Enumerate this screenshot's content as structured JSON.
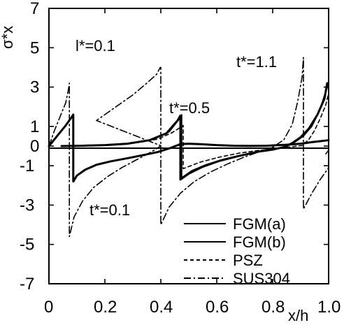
{
  "chart_data": {
    "type": "line",
    "title": "",
    "xlabel": "x/h",
    "ylabel": "σ*x",
    "xlim": [
      0,
      1
    ],
    "ylim": [
      -7,
      7
    ],
    "x_ticks": [
      "0",
      "0.2",
      "0.4",
      "0.6",
      "0.8",
      "1.0"
    ],
    "y_ticks": [
      "7",
      "5",
      "3",
      "1",
      "0",
      "-1",
      "-3",
      "-5",
      "-7"
    ],
    "annotations": [
      {
        "text": "l*=0.1"
      },
      {
        "text": "t*=0.1"
      },
      {
        "text": "t*=0.5"
      },
      {
        "text": "t*=1.1"
      }
    ],
    "series": [
      {
        "name": "FGM(a)",
        "style": "solid-thick",
        "points": [
          [
            0,
            0
          ],
          [
            0.02,
            0.35
          ],
          [
            0.04,
            0.7
          ],
          [
            0.06,
            1.05
          ],
          [
            0.08,
            1.45
          ],
          [
            0.087,
            1.6
          ],
          [
            0.087,
            -1.8
          ],
          [
            0.1,
            -1.5
          ],
          [
            0.13,
            -1.2
          ],
          [
            0.17,
            -0.95
          ],
          [
            0.22,
            -0.78
          ],
          [
            0.28,
            -0.62
          ],
          [
            0.34,
            -0.45
          ],
          [
            0.39,
            -0.3
          ],
          [
            0.43,
            -0.12
          ],
          [
            0.47,
            0.1
          ],
          [
            0.5,
            0.12
          ],
          [
            0.54,
            0.1
          ],
          [
            0.6,
            0.05
          ],
          [
            0.66,
            0.02
          ],
          [
            0.72,
            0.01
          ],
          [
            0.78,
            0.02
          ],
          [
            0.84,
            0.06
          ],
          [
            0.9,
            0.12
          ],
          [
            0.94,
            0.2
          ],
          [
            0.97,
            0.25
          ],
          [
            1.0,
            0.3
          ]
        ]
      },
      {
        "name": "FGM(a)",
        "style": "solid-thick",
        "points": [
          [
            0.045,
            0
          ],
          [
            0.12,
            0.02
          ],
          [
            0.2,
            0.05
          ],
          [
            0.28,
            0.12
          ],
          [
            0.36,
            0.3
          ],
          [
            0.42,
            0.65
          ],
          [
            0.46,
            1.3
          ],
          [
            0.47,
            1.55
          ],
          [
            0.47,
            -1.7
          ],
          [
            0.5,
            -1.4
          ],
          [
            0.55,
            -1.05
          ],
          [
            0.61,
            -0.75
          ],
          [
            0.68,
            -0.5
          ],
          [
            0.75,
            -0.28
          ],
          [
            0.8,
            -0.18
          ],
          [
            0.84,
            -0.05
          ],
          [
            0.87,
            0.15
          ],
          [
            0.9,
            0.45
          ],
          [
            0.93,
            0.9
          ],
          [
            0.96,
            1.6
          ],
          [
            0.985,
            2.4
          ],
          [
            0.995,
            3.2
          ]
        ]
      },
      {
        "name": "FGM(b)",
        "style": "solid-thin",
        "points": [
          [
            0.055,
            0
          ],
          [
            0.14,
            0.02
          ],
          [
            0.22,
            0.06
          ],
          [
            0.3,
            0.14
          ],
          [
            0.37,
            0.33
          ],
          [
            0.43,
            0.72
          ],
          [
            0.465,
            1.35
          ],
          [
            0.475,
            1.6
          ],
          [
            0.475,
            -1.6
          ],
          [
            0.51,
            -1.25
          ],
          [
            0.56,
            -0.95
          ],
          [
            0.62,
            -0.68
          ],
          [
            0.69,
            -0.45
          ],
          [
            0.76,
            -0.25
          ],
          [
            0.81,
            -0.15
          ],
          [
            0.85,
            -0.03
          ],
          [
            0.88,
            0.2
          ],
          [
            0.91,
            0.5
          ],
          [
            0.94,
            1.0
          ],
          [
            0.965,
            1.7
          ],
          [
            0.99,
            2.8
          ],
          [
            1.0,
            3.1
          ],
          [
            1.0,
            -0.2
          ],
          [
            0.99,
            -0.4
          ]
        ]
      },
      {
        "name": "PSZ",
        "style": "dashed",
        "points": [
          [
            0.06,
            0
          ],
          [
            0.16,
            0.03
          ],
          [
            0.24,
            0.08
          ],
          [
            0.32,
            0.18
          ],
          [
            0.39,
            0.36
          ],
          [
            0.44,
            0.68
          ],
          [
            0.47,
            0.95
          ],
          [
            0.48,
            1.05
          ],
          [
            0.48,
            -1.15
          ],
          [
            0.54,
            -0.82
          ],
          [
            0.61,
            -0.56
          ],
          [
            0.68,
            -0.36
          ],
          [
            0.75,
            -0.22
          ],
          [
            0.81,
            -0.14
          ],
          [
            0.86,
            -0.05
          ],
          [
            0.9,
            0.02
          ],
          [
            0.905,
            0.02
          ],
          [
            0.91,
            0.08
          ],
          [
            0.93,
            0.35
          ],
          [
            0.95,
            0.8
          ],
          [
            0.97,
            1.4
          ],
          [
            0.99,
            2.1
          ],
          [
            1.0,
            2.7
          ]
        ]
      },
      {
        "name": "SUS304",
        "style": "dashdot",
        "points": [
          [
            0,
            0
          ],
          [
            0.02,
            0.8
          ],
          [
            0.04,
            1.5
          ],
          [
            0.06,
            2.2
          ],
          [
            0.07,
            2.9
          ],
          [
            0.073,
            3.2
          ],
          [
            0.073,
            -4.6
          ],
          [
            0.09,
            -3.6
          ],
          [
            0.12,
            -2.8
          ],
          [
            0.16,
            -2.1
          ],
          [
            0.21,
            -1.55
          ],
          [
            0.26,
            -1.1
          ],
          [
            0.31,
            -0.72
          ],
          [
            0.35,
            -0.42
          ],
          [
            0.38,
            -0.18
          ],
          [
            0.4,
            0.02
          ],
          [
            0.4,
            0.02
          ],
          [
            0.17,
            1.3
          ],
          [
            0.24,
            2.0
          ],
          [
            0.3,
            2.6
          ],
          [
            0.35,
            3.2
          ],
          [
            0.385,
            3.65
          ],
          [
            0.398,
            4.0
          ],
          [
            0.4,
            4.0
          ],
          [
            0.4,
            -4.0
          ],
          [
            0.43,
            -3.1
          ],
          [
            0.47,
            -2.4
          ],
          [
            0.52,
            -1.8
          ],
          [
            0.58,
            -1.3
          ],
          [
            0.64,
            -0.9
          ],
          [
            0.7,
            -0.55
          ],
          [
            0.76,
            -0.25
          ],
          [
            0.8,
            -0.06
          ],
          [
            0.84,
            0.32
          ],
          [
            0.87,
            1.1
          ],
          [
            0.89,
            2.3
          ],
          [
            0.905,
            3.5
          ],
          [
            0.91,
            4.5
          ],
          [
            0.91,
            -3.2
          ],
          [
            0.94,
            -2.4
          ],
          [
            0.97,
            -1.7
          ],
          [
            1.0,
            -1.1
          ]
        ]
      }
    ]
  }
}
